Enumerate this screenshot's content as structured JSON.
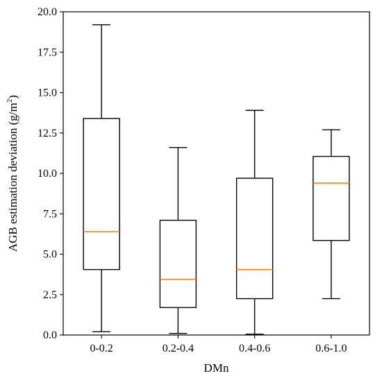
{
  "chart_data": {
    "type": "box",
    "title": "",
    "xlabel": "DMn",
    "ylabel_main": "AGB estimation deviation (g/m",
    "ylabel_sup": "2",
    "ylabel_close": ")",
    "ylim": [
      0,
      20
    ],
    "yticks": [
      0.0,
      2.5,
      5.0,
      7.5,
      10.0,
      12.5,
      15.0,
      17.5,
      20.0
    ],
    "ytick_labels": [
      "0.0",
      "2.5",
      "5.0",
      "7.5",
      "10.0",
      "12.5",
      "15.0",
      "17.5",
      "20.0"
    ],
    "categories": [
      "0-0.2",
      "0.2-0.4",
      "0.4-0.6",
      "0.6-1.0"
    ],
    "boxes": [
      {
        "category": "0-0.2",
        "whisker_low": 0.2,
        "q1": 4.05,
        "median": 6.4,
        "q3": 13.4,
        "whisker_high": 19.2
      },
      {
        "category": "0.2-0.4",
        "whisker_low": 0.1,
        "q1": 1.7,
        "median": 3.45,
        "q3": 7.1,
        "whisker_high": 11.6
      },
      {
        "category": "0.4-0.6",
        "whisker_low": 0.05,
        "q1": 2.25,
        "median": 4.05,
        "q3": 9.7,
        "whisker_high": 13.9
      },
      {
        "category": "0.6-1.0",
        "whisker_low": 2.25,
        "q1": 5.85,
        "median": 9.4,
        "q3": 11.05,
        "whisker_high": 12.7
      }
    ],
    "colors": {
      "box": "#000000",
      "median": "#ff7f0e",
      "axis": "#000000"
    },
    "grid": false,
    "legend": "none"
  }
}
